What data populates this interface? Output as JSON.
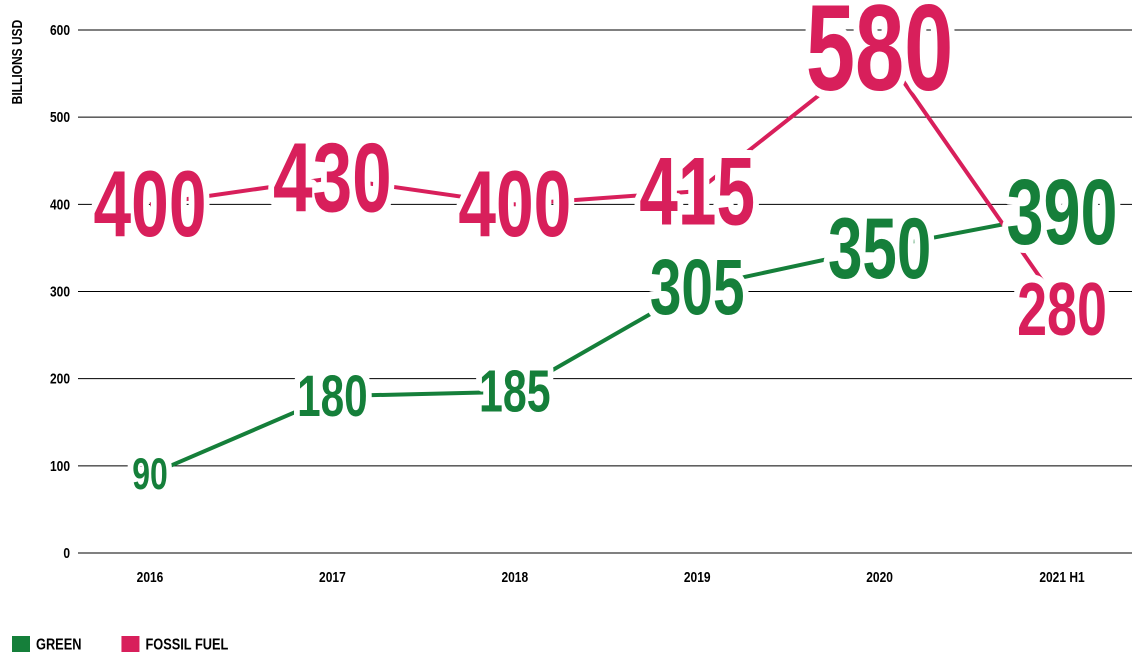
{
  "chart_data": {
    "type": "line",
    "y_label": "BILLIONS USD",
    "categories": [
      "2016",
      "2017",
      "2018",
      "2019",
      "2020",
      "2021 H1"
    ],
    "series": [
      {
        "name": "GREEN",
        "color": "#157f3a",
        "values": [
          90,
          180,
          185,
          305,
          350,
          390
        ]
      },
      {
        "name": "FOSSIL FUEL",
        "color": "#d81f5b",
        "values": [
          400,
          430,
          400,
          415,
          580,
          280
        ]
      }
    ],
    "ylim": [
      0,
      600
    ],
    "yticks": [
      0,
      100,
      200,
      300,
      400,
      500,
      600
    ],
    "grid": true,
    "legend": "bottom-left"
  }
}
